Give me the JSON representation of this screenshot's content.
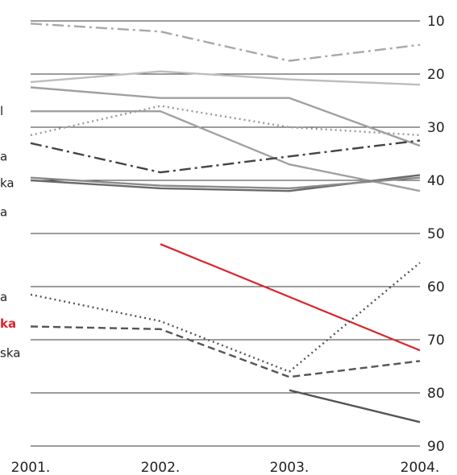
{
  "chart_data": {
    "type": "line",
    "x": [
      "2001.",
      "2002.",
      "2003.",
      "2004."
    ],
    "y_ticks": [
      10,
      20,
      30,
      40,
      50,
      60,
      70,
      80,
      90
    ],
    "ylim": [
      6,
      90
    ],
    "y_inverted": true,
    "grid": "horizontal",
    "label_fragments": [
      {
        "text": "l",
        "y": 27,
        "highlight": false
      },
      {
        "text": "a",
        "y": 35.5,
        "highlight": false
      },
      {
        "text": "ka",
        "y": 40.5,
        "highlight": false
      },
      {
        "text": "a",
        "y": 46,
        "highlight": false
      },
      {
        "text": "a",
        "y": 62,
        "highlight": false
      },
      {
        "text": "ka",
        "y": 67,
        "highlight": true
      },
      {
        "text": "ska",
        "y": 72.5,
        "highlight": false
      }
    ],
    "series": [
      {
        "values": [
          10.5,
          12,
          17.5,
          14.5
        ],
        "color": "#a8a8a8",
        "dash": "dashdot"
      },
      {
        "values": [
          21.5,
          19.5,
          21,
          22
        ],
        "color": "#bdbdbd",
        "dash": "solid"
      },
      {
        "values": [
          22.5,
          24.5,
          24.5,
          33.5
        ],
        "color": "#a0a0a0",
        "dash": "solid"
      },
      {
        "values": [
          27,
          27,
          37,
          42
        ],
        "color": "#a0a0a0",
        "dash": "solid"
      },
      {
        "values": [
          31.5,
          26,
          30,
          31.5
        ],
        "color": "#999999",
        "dash": "dotted"
      },
      {
        "values": [
          33,
          38.5,
          35.5,
          32.5
        ],
        "color": "#444444",
        "dash": "dashdot"
      },
      {
        "values": [
          40,
          41.5,
          42,
          39
        ],
        "color": "#6a6a6a",
        "dash": "solid"
      },
      {
        "values": [
          39.5,
          41,
          41.5,
          39.5
        ],
        "color": "#8a8a8a",
        "dash": "solid"
      },
      {
        "values": [
          null,
          52,
          null,
          72
        ],
        "color": "#d9252a",
        "dash": "solid",
        "highlight": true
      },
      {
        "values": [
          61.5,
          66.5,
          76,
          55.5
        ],
        "color": "#555555",
        "dash": "dotted"
      },
      {
        "values": [
          67.5,
          68,
          77,
          74
        ],
        "color": "#555555",
        "dash": "dashed"
      },
      {
        "values": [
          null,
          null,
          79.5,
          85.5
        ],
        "color": "#555555",
        "dash": "solid"
      }
    ]
  }
}
